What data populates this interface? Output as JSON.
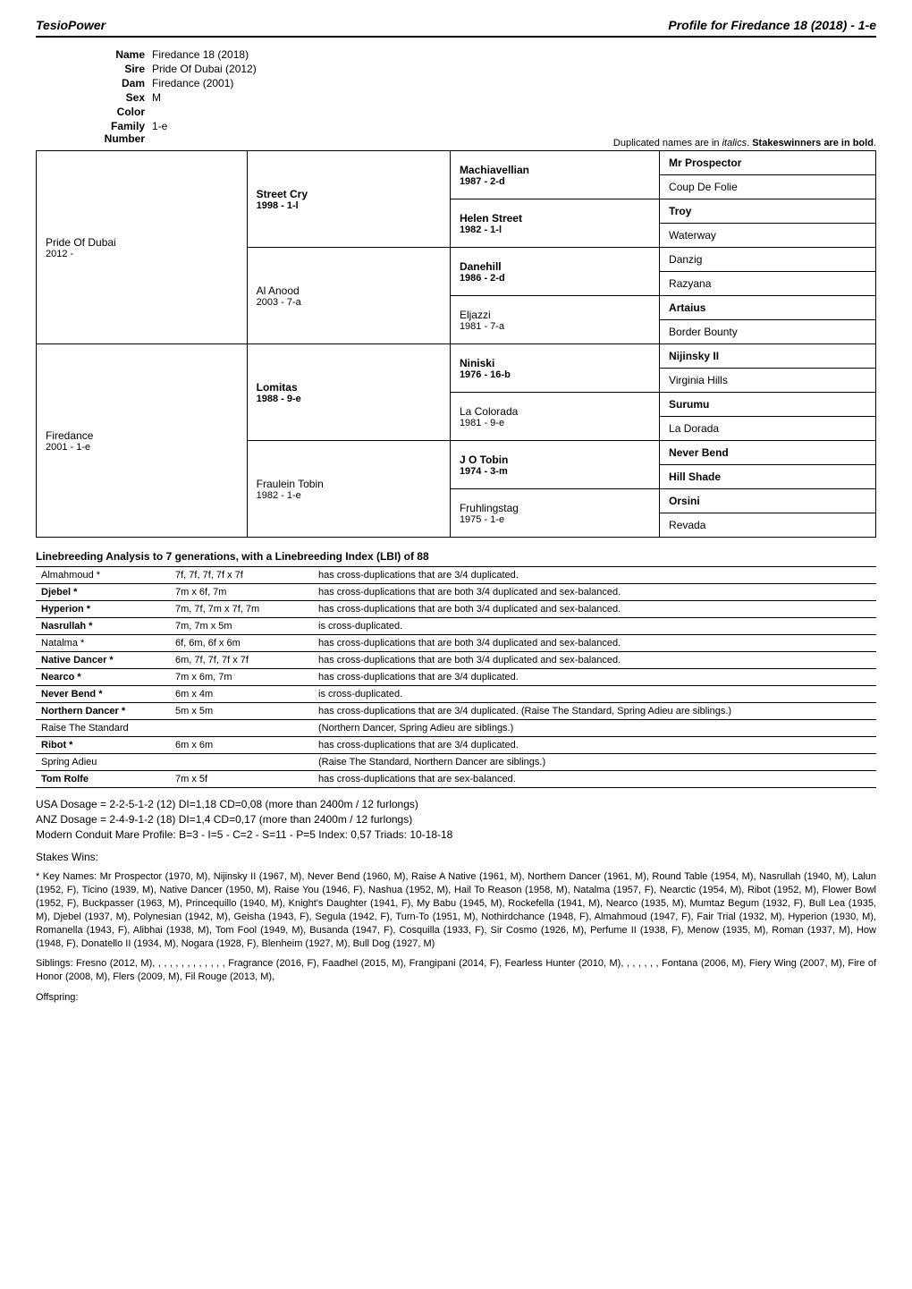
{
  "header": {
    "left": "TesioPower",
    "right": "Profile for Firedance 18 (2018) - 1-e"
  },
  "info": {
    "name_label": "Name",
    "name": "Firedance 18 (2018)",
    "sire_label": "Sire",
    "sire": "Pride Of Dubai (2012)",
    "dam_label": "Dam",
    "dam": "Firedance (2001)",
    "sex_label": "Sex",
    "sex": "M",
    "color_label": "Color",
    "color": "",
    "family_label": "Family Number",
    "family": "1-e"
  },
  "legend": {
    "prefix": "Duplicated names are in ",
    "italic": "italics",
    "mid": ". ",
    "bold": "Stakeswinners are in bold",
    "suffix": "."
  },
  "pedigree": {
    "gen1": [
      {
        "name": "Pride Of Dubai",
        "sub": "2012 -"
      },
      {
        "name": "Firedance",
        "sub": "2001 - 1-e"
      }
    ],
    "gen2": [
      {
        "name": "Street Cry",
        "sub": "1998 - 1-l",
        "bold": true
      },
      {
        "name": "Al Anood",
        "sub": "2003 - 7-a",
        "bold": false
      },
      {
        "name": "Lomitas",
        "sub": "1988 - 9-e",
        "bold": true
      },
      {
        "name": "Fraulein Tobin",
        "sub": "1982 - 1-e",
        "bold": false
      }
    ],
    "gen3": [
      {
        "name": "Machiavellian",
        "sub": "1987 - 2-d",
        "bold": true
      },
      {
        "name": "Helen Street",
        "sub": "1982 - 1-l",
        "bold": true
      },
      {
        "name": "Danehill",
        "sub": "1986 - 2-d",
        "bold": true
      },
      {
        "name": "Eljazzi",
        "sub": "1981 - 7-a",
        "bold": false
      },
      {
        "name": "Niniski",
        "sub": "1976 - 16-b",
        "bold": true
      },
      {
        "name": "La Colorada",
        "sub": "1981 - 9-e",
        "bold": false
      },
      {
        "name": "J O Tobin",
        "sub": "1974 - 3-m",
        "bold": true
      },
      {
        "name": "Fruhlingstag",
        "sub": "1975 - 1-e",
        "bold": false
      }
    ],
    "gen4": [
      {
        "name": "Mr Prospector",
        "bold": true
      },
      {
        "name": "Coup De Folie",
        "bold": false
      },
      {
        "name": "Troy",
        "bold": true
      },
      {
        "name": "Waterway",
        "bold": false
      },
      {
        "name": "Danzig",
        "bold": false
      },
      {
        "name": "Razyana",
        "bold": false
      },
      {
        "name": "Artaius",
        "bold": true
      },
      {
        "name": "Border Bounty",
        "bold": false
      },
      {
        "name": "Nijinsky II",
        "bold": true
      },
      {
        "name": "Virginia Hills",
        "bold": false
      },
      {
        "name": "Surumu",
        "bold": true
      },
      {
        "name": "La Dorada",
        "bold": false
      },
      {
        "name": "Never Bend",
        "bold": true
      },
      {
        "name": "Hill Shade",
        "bold": true
      },
      {
        "name": "Orsini",
        "bold": true
      },
      {
        "name": "Revada",
        "bold": false
      }
    ]
  },
  "linebreed_title": "Linebreeding Analysis to 7 generations, with a Linebreeding Index (LBI) of 88",
  "linebreed": [
    {
      "name": "Almahmoud *",
      "pos": "7f, 7f, 7f, 7f x 7f",
      "note": "has cross-duplications that are 3/4 duplicated.",
      "bold": false
    },
    {
      "name": "Djebel *",
      "pos": "7m x 6f, 7m",
      "note": "has cross-duplications that are both 3/4 duplicated and sex-balanced.",
      "bold": true
    },
    {
      "name": "Hyperion *",
      "pos": "7m, 7f, 7m x 7f, 7m",
      "note": "has cross-duplications that are both 3/4 duplicated and sex-balanced.",
      "bold": true
    },
    {
      "name": "Nasrullah *",
      "pos": "7m, 7m x 5m",
      "note": "is cross-duplicated.",
      "bold": true
    },
    {
      "name": "Natalma *",
      "pos": "6f, 6m, 6f x 6m",
      "note": "has cross-duplications that are both 3/4 duplicated and sex-balanced.",
      "bold": false
    },
    {
      "name": "Native Dancer *",
      "pos": "6m, 7f, 7f, 7f x 7f",
      "note": "has cross-duplications that are both 3/4 duplicated and sex-balanced.",
      "bold": true
    },
    {
      "name": "Nearco *",
      "pos": "7m x 6m, 7m",
      "note": "has cross-duplications that are 3/4 duplicated.",
      "bold": true
    },
    {
      "name": "Never Bend *",
      "pos": "6m x 4m",
      "note": "is cross-duplicated.",
      "bold": true
    },
    {
      "name": "Northern Dancer *",
      "pos": "5m x 5m",
      "note": "has cross-duplications that are 3/4 duplicated. (Raise The Standard, Spring Adieu are siblings.)",
      "bold": true
    },
    {
      "name": "Raise The Standard",
      "pos": "",
      "note": "(Northern Dancer, Spring Adieu are siblings.)",
      "bold": false
    },
    {
      "name": "Ribot *",
      "pos": "6m x 6m",
      "note": "has cross-duplications that are 3/4 duplicated.",
      "bold": true
    },
    {
      "name": "Spring Adieu",
      "pos": "",
      "note": "(Raise The Standard, Northern Dancer are siblings.)",
      "bold": false
    },
    {
      "name": "Tom Rolfe",
      "pos": "7m x 5f",
      "note": "has cross-duplications that are sex-balanced.",
      "bold": true
    }
  ],
  "dosage": {
    "l1": "USA Dosage = 2-2-5-1-2 (12) DI=1,18 CD=0,08 (more than 2400m / 12 furlongs)",
    "l2": "ANZ Dosage = 2-4-9-1-2 (18) DI=1,4 CD=0,17 (more than 2400m / 12 furlongs)",
    "l3": "Modern Conduit Mare Profile:   B=3 - I=5 - C=2 - S=11 - P=5   Index: 0,57   Triads: 10-18-18"
  },
  "stakes_label": "Stakes Wins:",
  "keynames": "* Key Names: Mr Prospector (1970, M),  Nijinsky II (1967, M),  Never Bend (1960, M),  Raise A Native (1961, M),  Northern Dancer (1961, M),  Round Table (1954, M),  Nasrullah (1940, M),  Lalun (1952, F),  Ticino (1939, M),  Native Dancer (1950, M),  Raise You (1946, F),  Nashua (1952, M),  Hail To Reason (1958, M),  Natalma (1957, F),  Nearctic (1954, M),  Ribot (1952, M),  Flower Bowl (1952, F),  Buckpasser (1963, M),  Princequillo (1940, M),  Knight's Daughter (1941, F),  My Babu (1945, M),  Rockefella (1941, M),  Nearco (1935, M),  Mumtaz Begum (1932, F),  Bull Lea (1935, M),  Djebel (1937, M),  Polynesian (1942, M),  Geisha (1943, F),  Segula (1942, F),  Turn-To (1951, M),  Nothirdchance (1948, F),  Almahmoud (1947, F),  Fair Trial (1932, M),  Hyperion (1930, M),  Romanella (1943, F),  Alibhai (1938, M),  Tom Fool (1949, M),  Busanda (1947, F),  Cosquilla (1933, F),  Sir Cosmo (1926, M),  Perfume II (1938, F),  Menow (1935, M),  Roman (1937, M),  How (1948, F),  Donatello II (1934, M),  Nogara (1928, F),  Blenheim (1927, M),  Bull Dog (1927, M)",
  "siblings": "Siblings: Fresno (2012, M),  ,  ,  ,  ,  ,  ,  ,  ,  ,  ,  ,  ,  Fragrance (2016, F),  Faadhel (2015, M),  Frangipani (2014, F),  Fearless Hunter (2010, M),  ,  ,  ,  ,  ,  ,  Fontana (2006, M),  Fiery Wing (2007, M),  Fire of Honor (2008, M),  Flers (2009, M),  Fil Rouge (2013, M),",
  "offspring_label": "Offspring:"
}
